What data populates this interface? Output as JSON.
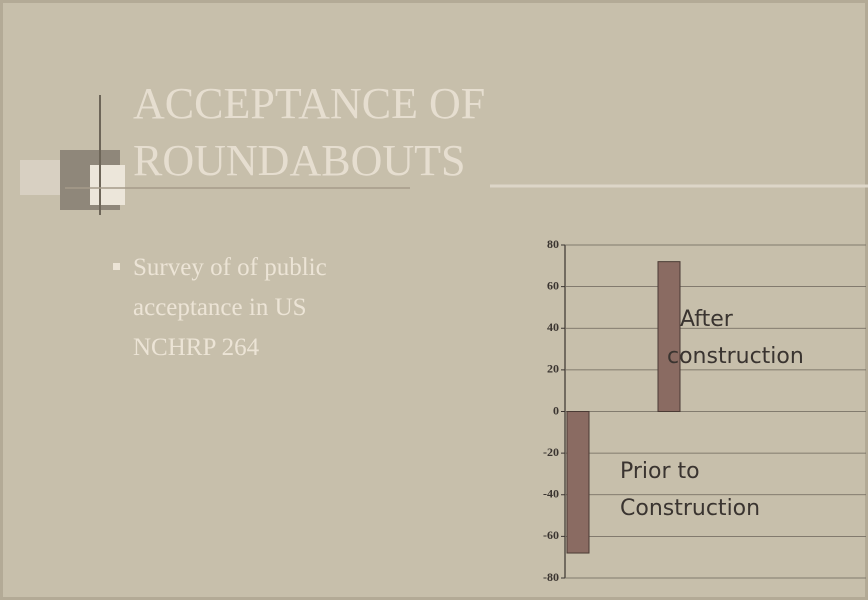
{
  "slide": {
    "title_lines": [
      "ACCEPTANCE OF",
      "ROUNDABOUTS"
    ],
    "bullet_lines": [
      "Survey of of public",
      "acceptance in US",
      "NCHRP 264"
    ]
  },
  "chart_data": {
    "type": "bar",
    "categories": [
      null,
      null
    ],
    "values": [
      -68,
      72
    ],
    "color": "#8a6b62",
    "ylim": [
      -80,
      80
    ],
    "yticks": [
      -80,
      -60,
      -40,
      -20,
      0,
      20,
      40,
      60,
      80
    ],
    "grid": true,
    "annotations": [
      [
        "Prior to",
        "Construction"
      ],
      [
        "After",
        "construction"
      ]
    ]
  }
}
